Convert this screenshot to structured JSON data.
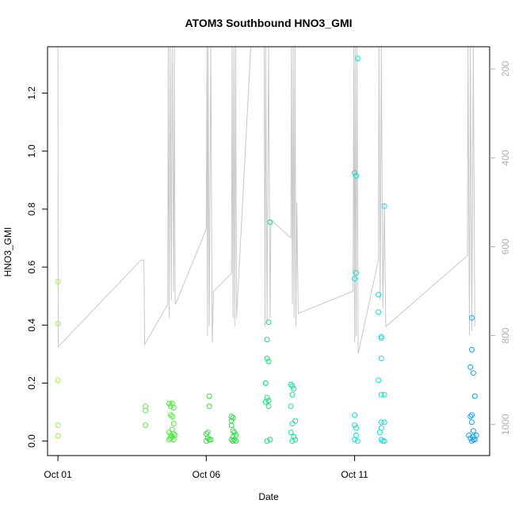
{
  "chart_data": {
    "type": "scatter",
    "title": "ATOM3 Southbound HNO3_GMI",
    "xlabel": "Date",
    "ylabel": "HNO3_GMI",
    "x_ticks": [
      "Oct 01",
      "Oct 06",
      "Oct 11"
    ],
    "x_tick_values": [
      1,
      6,
      11
    ],
    "xlim": [
      0.65,
      15.55
    ],
    "ylim": [
      -0.05,
      1.36
    ],
    "y_ticks": [
      "0.0",
      "0.2",
      "0.4",
      "0.6",
      "0.8",
      "1.0",
      "1.2"
    ],
    "y_tick_values": [
      0.0,
      0.2,
      0.4,
      0.6,
      0.8,
      1.0,
      1.2
    ],
    "right_axis": {
      "ticks": [
        "200",
        "400",
        "600",
        "800",
        "1000"
      ],
      "tick_values": [
        200,
        400,
        600,
        800,
        1000
      ],
      "lim": [
        1070,
        150
      ],
      "color": "#b0b0b0",
      "reversed": true
    },
    "grid": false,
    "point_colors": {
      "Oct 01": "#9ef03c",
      "Oct 04-05": "#55e83a",
      "Oct 06-07": "#22dd44",
      "Oct 08-09": "#10e08c",
      "Oct 11-12": "#18dcd8",
      "Oct 15": "#1a9fe6"
    },
    "points": [
      [
        1.0,
        0.55,
        "#9ef03c"
      ],
      [
        1.0,
        0.405,
        "#9ef03c"
      ],
      [
        1.0,
        0.21,
        "#9ef03c"
      ],
      [
        1.0,
        0.055,
        "#9ef03c"
      ],
      [
        1.0,
        0.018,
        "#9ef03c"
      ],
      [
        3.95,
        0.12,
        "#60ea3a"
      ],
      [
        3.95,
        0.105,
        "#60ea3a"
      ],
      [
        3.95,
        0.055,
        "#60ea3a"
      ],
      [
        4.75,
        0.13,
        "#4ce83a"
      ],
      [
        4.8,
        0.12,
        "#4ce83a"
      ],
      [
        4.85,
        0.13,
        "#4ce83a"
      ],
      [
        4.9,
        0.115,
        "#4ce83a"
      ],
      [
        4.8,
        0.09,
        "#4ce83a"
      ],
      [
        4.85,
        0.085,
        "#4ce83a"
      ],
      [
        4.9,
        0.06,
        "#4ce83a"
      ],
      [
        4.85,
        0.04,
        "#4ce83a"
      ],
      [
        4.75,
        0.03,
        "#4ce83a"
      ],
      [
        4.8,
        0.02,
        "#4ce83a"
      ],
      [
        4.85,
        0.015,
        "#4ce83a"
      ],
      [
        4.9,
        0.025,
        "#4ce83a"
      ],
      [
        4.8,
        0.01,
        "#4ce83a"
      ],
      [
        4.75,
        0.005,
        "#4ce83a"
      ],
      [
        4.9,
        0.005,
        "#4ce83a"
      ],
      [
        4.95,
        0.02,
        "#4ce83a"
      ],
      [
        6.1,
        0.155,
        "#2ee040"
      ],
      [
        6.1,
        0.12,
        "#2ee040"
      ],
      [
        6.05,
        0.03,
        "#2ee040"
      ],
      [
        6.0,
        0.025,
        "#2ee040"
      ],
      [
        6.05,
        0.01,
        "#2ee040"
      ],
      [
        6.1,
        0.005,
        "#2ee040"
      ],
      [
        6.0,
        0.0,
        "#2ee040"
      ],
      [
        6.15,
        0.005,
        "#2ee040"
      ],
      [
        6.85,
        0.085,
        "#28de48"
      ],
      [
        6.9,
        0.08,
        "#28de48"
      ],
      [
        6.85,
        0.07,
        "#28de48"
      ],
      [
        6.85,
        0.055,
        "#28de48"
      ],
      [
        6.9,
        0.035,
        "#28de48"
      ],
      [
        6.95,
        0.03,
        "#28de48"
      ],
      [
        6.9,
        0.015,
        "#28de48"
      ],
      [
        7.0,
        0.02,
        "#28de48"
      ],
      [
        6.95,
        0.005,
        "#28de48"
      ],
      [
        6.85,
        0.005,
        "#28de48"
      ],
      [
        7.0,
        0.0,
        "#28de48"
      ],
      [
        6.9,
        0.0,
        "#28de48"
      ],
      [
        8.05,
        0.35,
        "#15e070"
      ],
      [
        8.1,
        0.41,
        "#15e070"
      ],
      [
        8.1,
        0.275,
        "#15e070"
      ],
      [
        8.05,
        0.285,
        "#15e070"
      ],
      [
        8.0,
        0.2,
        "#15e070"
      ],
      [
        8.05,
        0.15,
        "#15e070"
      ],
      [
        8.1,
        0.14,
        "#15e070"
      ],
      [
        8.0,
        0.135,
        "#15e070"
      ],
      [
        8.1,
        0.12,
        "#15e070"
      ],
      [
        8.05,
        0.0,
        "#15e070"
      ],
      [
        8.15,
        0.005,
        "#15e070"
      ],
      [
        8.15,
        0.755,
        "#15e070"
      ],
      [
        8.85,
        0.195,
        "#12e09a"
      ],
      [
        8.9,
        0.19,
        "#12e09a"
      ],
      [
        8.95,
        0.18,
        "#12e09a"
      ],
      [
        8.9,
        0.16,
        "#12e09a"
      ],
      [
        8.85,
        0.12,
        "#12e09a"
      ],
      [
        9.0,
        0.07,
        "#12e09a"
      ],
      [
        8.9,
        0.06,
        "#12e09a"
      ],
      [
        8.85,
        0.03,
        "#12e09a"
      ],
      [
        8.95,
        0.015,
        "#12e09a"
      ],
      [
        9.0,
        0.005,
        "#12e09a"
      ],
      [
        8.9,
        0.0,
        "#12e09a"
      ],
      [
        11.0,
        0.925,
        "#1adcd0"
      ],
      [
        11.05,
        0.915,
        "#1adcd0"
      ],
      [
        11.1,
        1.32,
        "#1adcd0"
      ],
      [
        11.05,
        0.58,
        "#1adcd0"
      ],
      [
        11.0,
        0.56,
        "#1adcd0"
      ],
      [
        11.0,
        0.09,
        "#1adcd0"
      ],
      [
        11.0,
        0.055,
        "#1adcd0"
      ],
      [
        11.05,
        0.045,
        "#1adcd0"
      ],
      [
        11.05,
        0.02,
        "#1adcd0"
      ],
      [
        11.0,
        0.005,
        "#1adcd0"
      ],
      [
        11.1,
        0.0,
        "#1adcd0"
      ],
      [
        11.8,
        0.505,
        "#1ad8e0"
      ],
      [
        11.8,
        0.445,
        "#1ad8e0"
      ],
      [
        11.9,
        0.36,
        "#1ad8e0"
      ],
      [
        11.9,
        0.355,
        "#1ad8e0"
      ],
      [
        11.9,
        0.285,
        "#1ad8e0"
      ],
      [
        11.8,
        0.21,
        "#1ad8e0"
      ],
      [
        11.9,
        0.16,
        "#1ad8e0"
      ],
      [
        12.0,
        0.16,
        "#1ad8e0"
      ],
      [
        11.9,
        0.065,
        "#1ad8e0"
      ],
      [
        12.0,
        0.065,
        "#1ad8e0"
      ],
      [
        11.9,
        0.045,
        "#1ad8e0"
      ],
      [
        11.85,
        0.03,
        "#1ad8e0"
      ],
      [
        11.9,
        0.005,
        "#1ad8e0"
      ],
      [
        11.95,
        0.0,
        "#1ad8e0"
      ],
      [
        12.0,
        0.0,
        "#1ad8e0"
      ],
      [
        12.0,
        0.81,
        "#1ad8e0"
      ],
      [
        14.95,
        0.425,
        "#1a9fe6"
      ],
      [
        14.95,
        0.315,
        "#1a9fe6"
      ],
      [
        14.9,
        0.255,
        "#1a9fe6"
      ],
      [
        15.0,
        0.235,
        "#1a9fe6"
      ],
      [
        15.05,
        0.155,
        "#1a9fe6"
      ],
      [
        14.95,
        0.09,
        "#1a9fe6"
      ],
      [
        14.9,
        0.085,
        "#1a9fe6"
      ],
      [
        14.95,
        0.065,
        "#1a9fe6"
      ],
      [
        15.0,
        0.035,
        "#1a9fe6"
      ],
      [
        14.85,
        0.02,
        "#1a9fe6"
      ],
      [
        14.9,
        0.01,
        "#1a9fe6"
      ],
      [
        15.0,
        0.015,
        "#1a9fe6"
      ],
      [
        15.05,
        0.005,
        "#1a9fe6"
      ],
      [
        14.95,
        0.0,
        "#1a9fe6"
      ],
      [
        15.1,
        0.02,
        "#1a9fe6"
      ],
      [
        15.0,
        0.005,
        "#1a9fe6"
      ]
    ],
    "pressure_line": {
      "color": "#c8c8c8",
      "points": [
        [
          1.0,
          150
        ],
        [
          1.01,
          825
        ],
        [
          3.8,
          630
        ],
        [
          3.9,
          630
        ],
        [
          3.92,
          820
        ],
        [
          4.7,
          730
        ],
        [
          4.72,
          150
        ],
        [
          4.75,
          760
        ],
        [
          4.78,
          150
        ],
        [
          4.82,
          720
        ],
        [
          4.85,
          150
        ],
        [
          4.9,
          700
        ],
        [
          4.92,
          150
        ],
        [
          4.95,
          720
        ],
        [
          4.96,
          730
        ],
        [
          6.0,
          560
        ],
        [
          6.02,
          150
        ],
        [
          6.04,
          800
        ],
        [
          6.06,
          150
        ],
        [
          6.1,
          780
        ],
        [
          6.15,
          150
        ],
        [
          6.2,
          815
        ],
        [
          6.25,
          700
        ],
        [
          6.85,
          660
        ],
        [
          6.87,
          150
        ],
        [
          6.9,
          760
        ],
        [
          6.93,
          150
        ],
        [
          6.96,
          780
        ],
        [
          6.99,
          150
        ],
        [
          7.02,
          760
        ],
        [
          7.5,
          150
        ],
        [
          7.95,
          150
        ],
        [
          7.98,
          780
        ],
        [
          8.0,
          150
        ],
        [
          8.05,
          770
        ],
        [
          8.1,
          150
        ],
        [
          8.15,
          760
        ],
        [
          8.18,
          540
        ],
        [
          8.85,
          580
        ],
        [
          8.87,
          150
        ],
        [
          8.9,
          730
        ],
        [
          8.93,
          150
        ],
        [
          8.96,
          760
        ],
        [
          8.99,
          150
        ],
        [
          9.02,
          780
        ],
        [
          9.05,
          500
        ],
        [
          9.1,
          750
        ],
        [
          10.95,
          700
        ],
        [
          10.97,
          150
        ],
        [
          11.0,
          815
        ],
        [
          11.02,
          150
        ],
        [
          11.05,
          800
        ],
        [
          11.08,
          150
        ],
        [
          11.12,
          840
        ],
        [
          11.8,
          630
        ],
        [
          11.82,
          150
        ],
        [
          11.86,
          720
        ],
        [
          11.9,
          150
        ],
        [
          11.95,
          740
        ],
        [
          12.0,
          500
        ],
        [
          12.05,
          780
        ],
        [
          14.8,
          620
        ],
        [
          14.82,
          150
        ],
        [
          14.87,
          800
        ],
        [
          14.9,
          150
        ],
        [
          14.95,
          790
        ],
        [
          15.0,
          150
        ],
        [
          15.05,
          780
        ]
      ]
    }
  }
}
